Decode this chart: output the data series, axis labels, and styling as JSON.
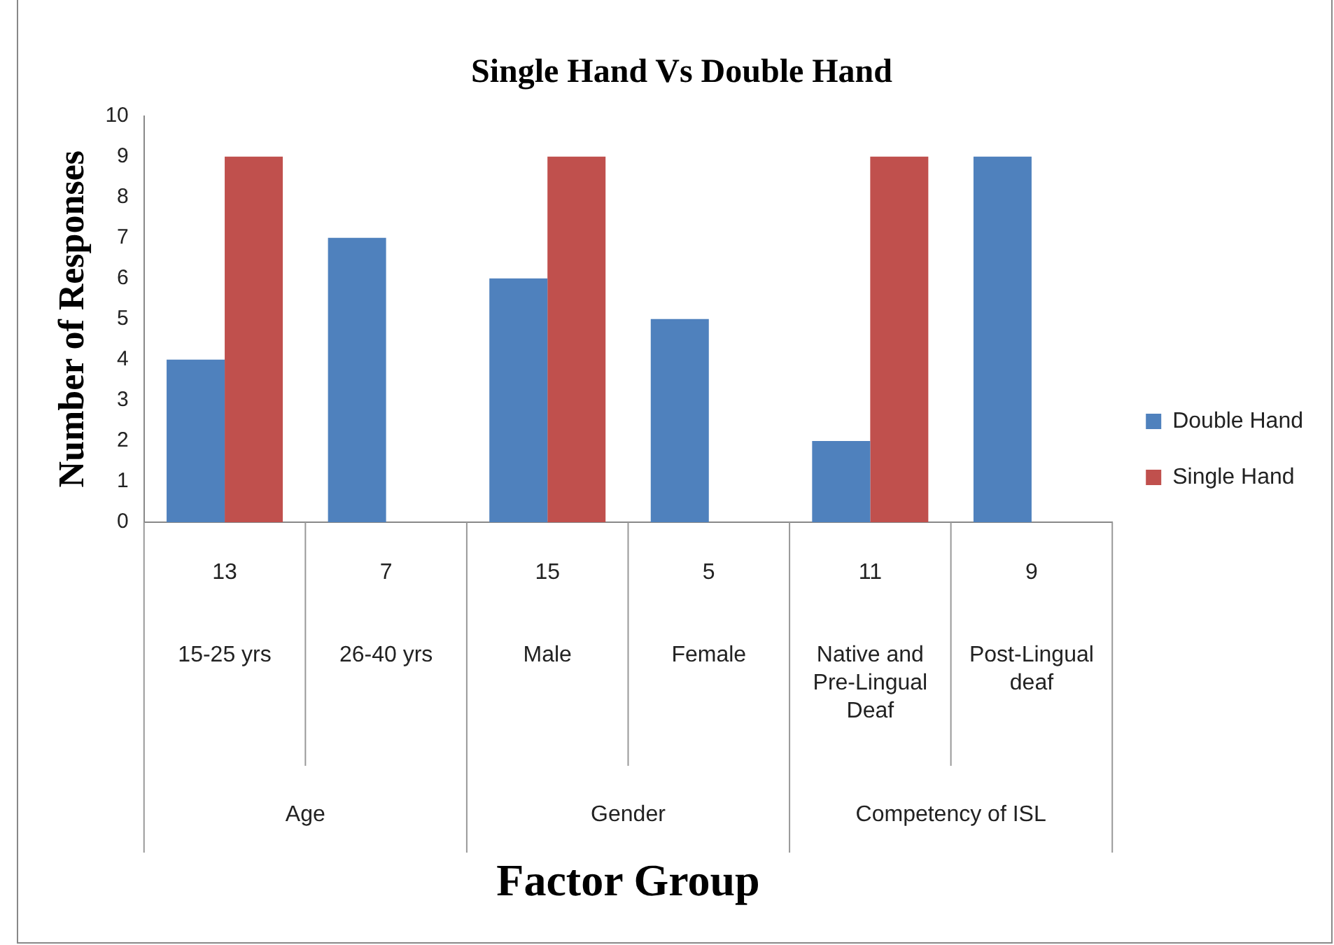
{
  "chart_data": {
    "type": "bar",
    "title": "Single Hand Vs Double Hand",
    "xlabel": "Factor Group",
    "ylabel": "Number of Responses",
    "categories": [
      "15-25 yrs",
      "26-40 yrs",
      "Male",
      "Female",
      "Native and Pre-Lingual Deaf",
      "Post-Lingual deaf"
    ],
    "series": [
      {
        "name": "Double Hand",
        "color": "#4f81bd",
        "values": [
          4,
          7,
          6,
          5,
          2,
          9
        ]
      },
      {
        "name": "Single Hand",
        "color": "#c0504d",
        "values": [
          9,
          0,
          9,
          0,
          9,
          0
        ]
      }
    ],
    "annotations": [
      "13",
      "7",
      "15",
      "5",
      "11",
      "9",
      "Age",
      "Gender",
      "Competency of ISL"
    ],
    "ylim": [
      0,
      10
    ],
    "yticks": [
      0,
      1,
      2,
      3,
      4,
      5,
      6,
      7,
      8,
      9,
      10
    ],
    "grid": false,
    "legend": "right"
  }
}
